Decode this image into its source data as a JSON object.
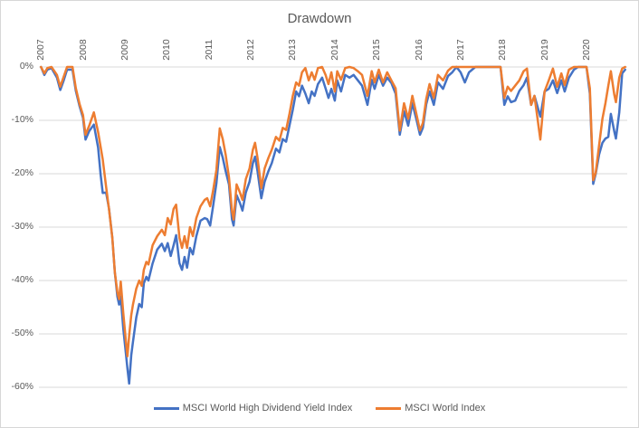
{
  "title": "Drawdown",
  "legend": {
    "items": [
      {
        "label": "MSCI World High Dividend Yield Index",
        "color": "#4472C4"
      },
      {
        "label": "MSCI World Index",
        "color": "#ED7D31"
      }
    ]
  },
  "colors": {
    "accent_blue": "#4472C4",
    "accent_orange": "#ED7D31",
    "grid": "#D9D9D9",
    "text": "#595959",
    "background": "#FFFFFF"
  },
  "chart_data": {
    "type": "line",
    "title": "Drawdown",
    "xlabel": "",
    "ylabel": "",
    "grid": "horizontal",
    "legend_position": "bottom",
    "ylim": [
      -60,
      0
    ],
    "xlim": [
      2006.95,
      2020.97
    ],
    "y_ticks": [
      0,
      -10,
      -20,
      -30,
      -40,
      -50,
      -60
    ],
    "y_tick_labels": [
      "0%",
      "-10%",
      "-20%",
      "-30%",
      "-40%",
      "-50%",
      "-60%"
    ],
    "x_ticks": [
      2007,
      2008,
      2009,
      2010,
      2011,
      2012,
      2013,
      2014,
      2015,
      2016,
      2017,
      2018,
      2019,
      2020
    ],
    "x_tick_labels": [
      "2007",
      "2008",
      "2009",
      "2010",
      "2011",
      "2012",
      "2013",
      "2014",
      "2015",
      "2016",
      "2017",
      "2018",
      "2019",
      "2020"
    ],
    "x": [
      2007.0,
      2007.08,
      2007.15,
      2007.25,
      2007.38,
      2007.46,
      2007.54,
      2007.62,
      2007.75,
      2007.83,
      2007.92,
      2008.0,
      2008.06,
      2008.15,
      2008.26,
      2008.36,
      2008.42,
      2008.47,
      2008.55,
      2008.62,
      2008.7,
      2008.76,
      2008.82,
      2008.86,
      2008.9,
      2008.96,
      2009.02,
      2009.06,
      2009.1,
      2009.15,
      2009.19,
      2009.27,
      2009.34,
      2009.4,
      2009.45,
      2009.51,
      2009.56,
      2009.66,
      2009.77,
      2009.88,
      2009.95,
      2010.02,
      2010.09,
      2010.16,
      2010.22,
      2010.3,
      2010.36,
      2010.42,
      2010.48,
      2010.55,
      2010.62,
      2010.7,
      2010.8,
      2010.9,
      2010.96,
      2011.03,
      2011.1,
      2011.18,
      2011.26,
      2011.33,
      2011.4,
      2011.48,
      2011.55,
      2011.59,
      2011.66,
      2011.74,
      2011.8,
      2011.88,
      2011.97,
      2012.05,
      2012.1,
      2012.16,
      2012.25,
      2012.33,
      2012.42,
      2012.5,
      2012.6,
      2012.68,
      2012.76,
      2012.84,
      2012.92,
      2013.0,
      2013.08,
      2013.15,
      2013.22,
      2013.3,
      2013.38,
      2013.45,
      2013.52,
      2013.6,
      2013.7,
      2013.78,
      2013.85,
      2013.92,
      2014.0,
      2014.06,
      2014.15,
      2014.25,
      2014.35,
      2014.45,
      2014.55,
      2014.65,
      2014.78,
      2014.88,
      2014.95,
      2015.05,
      2015.15,
      2015.25,
      2015.35,
      2015.45,
      2015.55,
      2015.65,
      2015.75,
      2015.85,
      2015.95,
      2016.03,
      2016.1,
      2016.18,
      2016.26,
      2016.36,
      2016.46,
      2016.58,
      2016.7,
      2016.8,
      2016.9,
      2017.0,
      2017.1,
      2017.2,
      2017.35,
      2017.5,
      2017.65,
      2017.8,
      2017.95,
      2018.04,
      2018.12,
      2018.2,
      2018.3,
      2018.4,
      2018.5,
      2018.58,
      2018.68,
      2018.76,
      2018.9,
      2019.0,
      2019.1,
      2019.2,
      2019.3,
      2019.4,
      2019.48,
      2019.58,
      2019.7,
      2019.8,
      2019.9,
      2020.0,
      2020.08,
      2020.16,
      2020.22,
      2020.3,
      2020.38,
      2020.45,
      2020.52,
      2020.58,
      2020.66,
      2020.7,
      2020.78,
      2020.85,
      2020.92
    ],
    "series": [
      {
        "name": "MSCI World High Dividend Yield Index",
        "color": "#4472C4",
        "values": [
          0,
          -1.5,
          -0.5,
          -0.2,
          -2.0,
          -4.3,
          -2.5,
          -0.5,
          -0.5,
          -4.5,
          -7.4,
          -9.5,
          -13.6,
          -12.0,
          -10.8,
          -15.1,
          -20.2,
          -23.6,
          -23.5,
          -26.5,
          -32.0,
          -38.5,
          -43.0,
          -44.5,
          -43.0,
          -49.0,
          -53.5,
          -56.5,
          -59.3,
          -54.0,
          -51.5,
          -46.9,
          -44.4,
          -45.0,
          -40.5,
          -39.3,
          -40.0,
          -36.8,
          -34.2,
          -33.1,
          -34.5,
          -33.0,
          -35.4,
          -33.4,
          -31.5,
          -36.8,
          -38.0,
          -35.6,
          -37.6,
          -33.9,
          -35.1,
          -31.7,
          -28.8,
          -28.3,
          -28.5,
          -29.7,
          -26.1,
          -21.8,
          -15.0,
          -17.0,
          -19.5,
          -22.0,
          -28.5,
          -29.7,
          -24.0,
          -25.5,
          -26.9,
          -23.5,
          -21.5,
          -18.0,
          -16.8,
          -19.5,
          -24.6,
          -21.5,
          -19.5,
          -18.0,
          -15.3,
          -16.0,
          -13.5,
          -14.0,
          -11.0,
          -8.0,
          -4.6,
          -5.5,
          -3.5,
          -5.0,
          -6.8,
          -4.6,
          -5.4,
          -3.2,
          -2.0,
          -4.0,
          -5.8,
          -4.1,
          -6.3,
          -2.5,
          -4.6,
          -1.5,
          -2.0,
          -1.5,
          -2.5,
          -3.5,
          -7.1,
          -2.4,
          -4.1,
          -1.5,
          -3.5,
          -2.0,
          -3.0,
          -5.0,
          -12.7,
          -8.3,
          -11.0,
          -6.8,
          -10.0,
          -12.7,
          -11.4,
          -7.0,
          -4.6,
          -7.1,
          -2.9,
          -4.1,
          -1.7,
          -1.0,
          0,
          -1.0,
          -2.9,
          -1.0,
          0,
          0,
          0,
          0,
          0,
          -7.1,
          -5.5,
          -6.6,
          -6.3,
          -4.5,
          -3.4,
          -2.0,
          -7.1,
          -5.4,
          -9.3,
          -4.6,
          -4.1,
          -2.5,
          -4.9,
          -2.5,
          -4.6,
          -2.0,
          -0.5,
          0,
          0,
          0,
          -5.0,
          -21.9,
          -20.0,
          -16.4,
          -14.2,
          -13.4,
          -13.1,
          -8.8,
          -12.0,
          -13.4,
          -8.5,
          -1.2,
          -0.5
        ]
      },
      {
        "name": "MSCI World Index",
        "color": "#ED7D31",
        "values": [
          0,
          -1.2,
          -0.2,
          0,
          -1.5,
          -3.7,
          -1.8,
          0,
          0,
          -4.0,
          -7.0,
          -9.0,
          -12.7,
          -11.0,
          -8.5,
          -12.2,
          -15.0,
          -17.3,
          -22.4,
          -26.6,
          -32.0,
          -38.5,
          -42.2,
          -43.5,
          -40.2,
          -46.1,
          -51.2,
          -54.2,
          -50.3,
          -46.5,
          -44.5,
          -41.5,
          -40.0,
          -41.0,
          -38.0,
          -36.5,
          -37.0,
          -33.4,
          -31.7,
          -30.5,
          -31.5,
          -28.3,
          -29.5,
          -26.6,
          -25.8,
          -32.0,
          -33.9,
          -31.7,
          -33.9,
          -30.0,
          -31.7,
          -28.3,
          -26.1,
          -24.9,
          -24.6,
          -26.1,
          -23.2,
          -19.3,
          -11.5,
          -13.5,
          -16.4,
          -20.7,
          -27.0,
          -28.6,
          -22.0,
          -23.5,
          -24.9,
          -21.0,
          -19.0,
          -15.5,
          -14.2,
          -17.0,
          -22.7,
          -19.0,
          -17.0,
          -15.5,
          -13.1,
          -13.8,
          -11.4,
          -11.8,
          -8.8,
          -5.4,
          -2.9,
          -3.5,
          -1.0,
          -0.2,
          -2.5,
          -1.0,
          -2.4,
          -0.2,
          0,
          -1.5,
          -3.2,
          -1.0,
          -4.6,
          -0.8,
          -2.4,
          -0.2,
          0,
          -0.2,
          -0.8,
          -1.5,
          -5.4,
          -0.8,
          -2.9,
          -0.5,
          -2.9,
          -1.0,
          -2.5,
          -4.0,
          -11.9,
          -6.8,
          -9.7,
          -5.4,
          -9.0,
          -11.9,
          -10.5,
          -6.0,
          -3.2,
          -5.8,
          -1.5,
          -2.5,
          -0.7,
          0,
          0,
          0,
          0,
          0,
          0,
          0,
          0,
          0,
          0,
          -5.8,
          -3.7,
          -4.5,
          -3.5,
          -2.5,
          -0.8,
          -0.3,
          -7.1,
          -5.4,
          -13.6,
          -4.6,
          -2.5,
          -0.3,
          -3.7,
          -1.2,
          -3.4,
          -0.5,
          0,
          0,
          0,
          0,
          -4.0,
          -21.2,
          -19.8,
          -14.7,
          -9.7,
          -6.8,
          -3.5,
          -0.8,
          -5.1,
          -6.6,
          -2.0,
          -0.3,
          0
        ]
      }
    ]
  }
}
